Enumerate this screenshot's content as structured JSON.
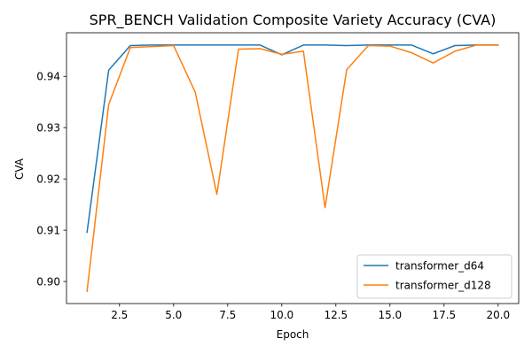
{
  "chart_data": {
    "type": "line",
    "title": "SPR_BENCH Validation Composite Variety Accuracy (CVA)",
    "xlabel": "Epoch",
    "ylabel": "CVA",
    "xlim": [
      0.05,
      20.95
    ],
    "ylim": [
      0.8957,
      0.9485
    ],
    "xticks": [
      2.5,
      5.0,
      7.5,
      10.0,
      12.5,
      15.0,
      17.5,
      20.0
    ],
    "xtick_labels": [
      "2.5",
      "5.0",
      "7.5",
      "10.0",
      "12.5",
      "15.0",
      "17.5",
      "20.0"
    ],
    "yticks": [
      0.9,
      0.91,
      0.92,
      0.93,
      0.94
    ],
    "ytick_labels": [
      "0.90",
      "0.91",
      "0.92",
      "0.93",
      "0.94"
    ],
    "grid": false,
    "legend_position": "lower-right",
    "x": [
      1,
      2,
      3,
      4,
      5,
      6,
      7,
      8,
      9,
      10,
      11,
      12,
      13,
      14,
      15,
      16,
      17,
      18,
      19,
      20
    ],
    "series": [
      {
        "name": "transformer_d64",
        "color": "#1f77b4",
        "values": [
          0.9096,
          0.9412,
          0.946,
          0.9461,
          0.9461,
          0.9461,
          0.9461,
          0.9461,
          0.9461,
          0.9442,
          0.9461,
          0.9461,
          0.946,
          0.9461,
          0.9461,
          0.9461,
          0.9444,
          0.946,
          0.9461,
          0.9461
        ]
      },
      {
        "name": "transformer_d128",
        "color": "#ff7f0e",
        "values": [
          0.8981,
          0.9345,
          0.9456,
          0.9458,
          0.946,
          0.9369,
          0.917,
          0.9453,
          0.9454,
          0.9443,
          0.9449,
          0.9144,
          0.9413,
          0.946,
          0.9459,
          0.9446,
          0.9426,
          0.9449,
          0.9461,
          0.9461
        ]
      }
    ]
  }
}
